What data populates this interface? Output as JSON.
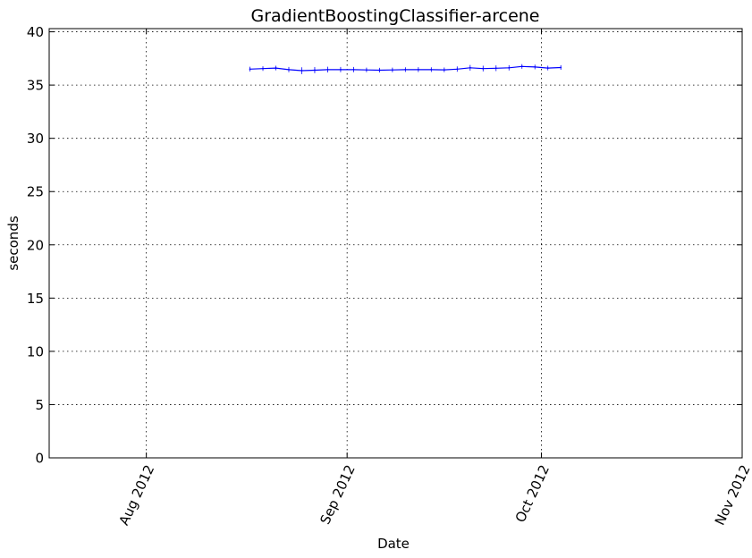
{
  "chart_data": {
    "type": "line",
    "title": "GradientBoostingClassifier-arcene",
    "xlabel": "Date",
    "ylabel": "seconds",
    "x_axis": {
      "type": "date",
      "range": [
        "2012-07-17",
        "2012-11-01"
      ],
      "ticks": [
        {
          "date": "2012-08-01",
          "label": "Aug 2012"
        },
        {
          "date": "2012-09-01",
          "label": "Sep 2012"
        },
        {
          "date": "2012-10-01",
          "label": "Oct 2012"
        },
        {
          "date": "2012-11-01",
          "label": "Nov 2012"
        }
      ],
      "tick_label_rotation": "65 degrees"
    },
    "y_axis": {
      "range": [
        0,
        40.3
      ],
      "ticks": [
        0,
        5,
        10,
        15,
        20,
        25,
        30,
        35,
        40
      ]
    },
    "grid": true,
    "series_color": "#0000ff",
    "series": [
      {
        "x": [
          "2012-08-17",
          "2012-08-19",
          "2012-08-21",
          "2012-08-23",
          "2012-08-25",
          "2012-08-27",
          "2012-08-29",
          "2012-08-31",
          "2012-09-02",
          "2012-09-04",
          "2012-09-06",
          "2012-09-08",
          "2012-09-10",
          "2012-09-12",
          "2012-09-14",
          "2012-09-16",
          "2012-09-18",
          "2012-09-20",
          "2012-09-22",
          "2012-09-24",
          "2012-09-26",
          "2012-09-28",
          "2012-09-30",
          "2012-10-02",
          "2012-10-04"
        ],
        "y": [
          36.5,
          36.55,
          36.6,
          36.45,
          36.35,
          36.4,
          36.45,
          36.45,
          36.45,
          36.42,
          36.4,
          36.42,
          36.45,
          36.45,
          36.45,
          36.43,
          36.5,
          36.62,
          36.55,
          36.58,
          36.62,
          36.75,
          36.7,
          36.6,
          36.65
        ],
        "err": [
          0.05,
          0.05,
          0.05,
          0.08,
          0.15,
          0.12,
          0.1,
          0.08,
          0.08,
          0.05,
          0.05,
          0.05,
          0.05,
          0.06,
          0.05,
          0.05,
          0.08,
          0.1,
          0.1,
          0.1,
          0.08,
          0.05,
          0.05,
          0.05,
          0.05
        ]
      }
    ]
  }
}
